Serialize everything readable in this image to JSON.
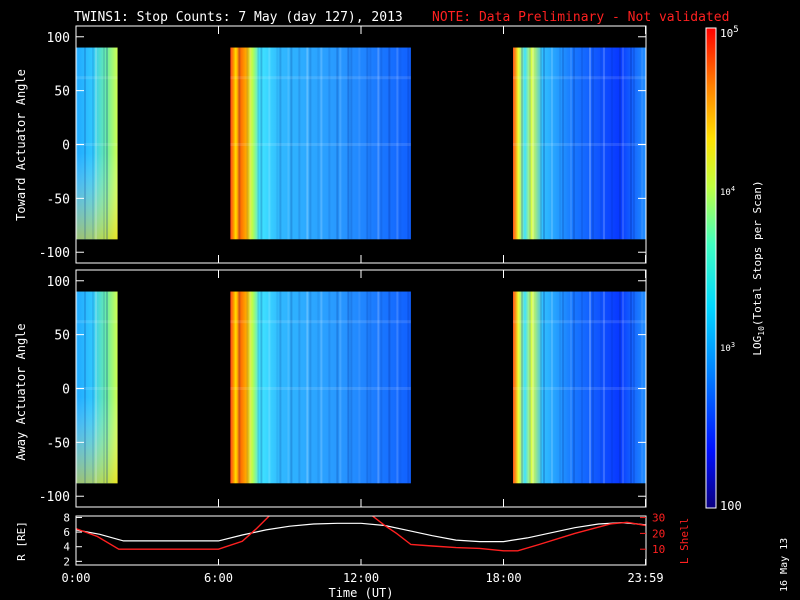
{
  "title": {
    "main": "TWINS1: Stop Counts:  7 May (day 127), 2013",
    "note": "NOTE: Data Preliminary - Not validated"
  },
  "side_stamp": "16 May 13",
  "colorbar": {
    "label": "LOG10(Total Stops per Scan)",
    "ticks": [
      "10^5",
      "10^4",
      "10^3",
      "100"
    ]
  },
  "colors": {
    "no_data": "#000000",
    "axes": "#ffffff",
    "note": "#ff2020",
    "r_line": "#ffffff",
    "l_line": "#ff2020"
  },
  "chart_data": [
    {
      "id": "toward",
      "type": "heatmap",
      "ylabel": "Toward Actuator Angle",
      "ylim": [
        -110,
        110
      ],
      "yticks": [
        100,
        50,
        0,
        -50,
        -100
      ],
      "xlim": [
        0,
        24
      ],
      "data_intervals_hours": [
        [
          0.0,
          1.75
        ],
        [
          6.5,
          14.1
        ],
        [
          18.4,
          24.0
        ]
      ],
      "angle_range": [
        -88,
        90
      ],
      "value_scale": "log",
      "value_range": [
        100,
        100000
      ]
    },
    {
      "id": "away",
      "type": "heatmap",
      "ylabel": "Away Actuator Angle",
      "ylim": [
        -110,
        110
      ],
      "yticks": [
        100,
        50,
        0,
        -50,
        -100
      ],
      "xlim": [
        0,
        24
      ],
      "data_intervals_hours": [
        [
          0.0,
          1.75
        ],
        [
          6.5,
          14.1
        ],
        [
          18.4,
          24.0
        ]
      ],
      "angle_range": [
        -88,
        90
      ],
      "value_scale": "log",
      "value_range": [
        100,
        100000
      ]
    },
    {
      "id": "orbit",
      "type": "line",
      "xlabel": "Time (UT)",
      "xticks": [
        "0:00",
        "6:00",
        "12:00",
        "18:00",
        "23:59"
      ],
      "xtick_hours": [
        0,
        6,
        12,
        18,
        23.98
      ],
      "ylabel_left": "R [RE]",
      "yticks_left": [
        2,
        4,
        6,
        8
      ],
      "ylim_left": [
        1.5,
        8.2
      ],
      "ylabel_right": "L Shell",
      "yticks_right": [
        10,
        20,
        30
      ],
      "ylim_right": [
        0,
        31
      ],
      "series": [
        {
          "name": "R [RE]",
          "x": [
            0,
            1,
            2,
            3,
            4,
            5,
            6,
            7,
            8,
            9,
            10,
            11,
            12,
            13,
            14,
            15,
            16,
            17,
            18,
            19,
            20,
            21,
            22,
            23,
            24
          ],
          "values": [
            6.3,
            5.7,
            4.8,
            4.8,
            4.8,
            4.8,
            4.8,
            5.6,
            6.3,
            6.8,
            7.1,
            7.2,
            7.2,
            6.9,
            6.2,
            5.5,
            4.9,
            4.7,
            4.7,
            5.2,
            5.9,
            6.6,
            7.1,
            7.3,
            7.0
          ]
        },
        {
          "name": "L Shell",
          "x": [
            0,
            0.9,
            1.8,
            3,
            4,
            5,
            6,
            7,
            7.6,
            8.2,
            12.4,
            13,
            13.5,
            14.1,
            15,
            16,
            17,
            18,
            18.6,
            19.5,
            21,
            22.5,
            23.2,
            24
          ],
          "values": [
            23,
            18,
            10,
            10,
            10,
            10,
            10,
            15,
            23,
            32,
            32,
            25,
            20,
            13,
            12,
            11,
            10.5,
            9,
            9,
            13,
            20,
            26,
            27,
            25
          ]
        }
      ]
    }
  ]
}
